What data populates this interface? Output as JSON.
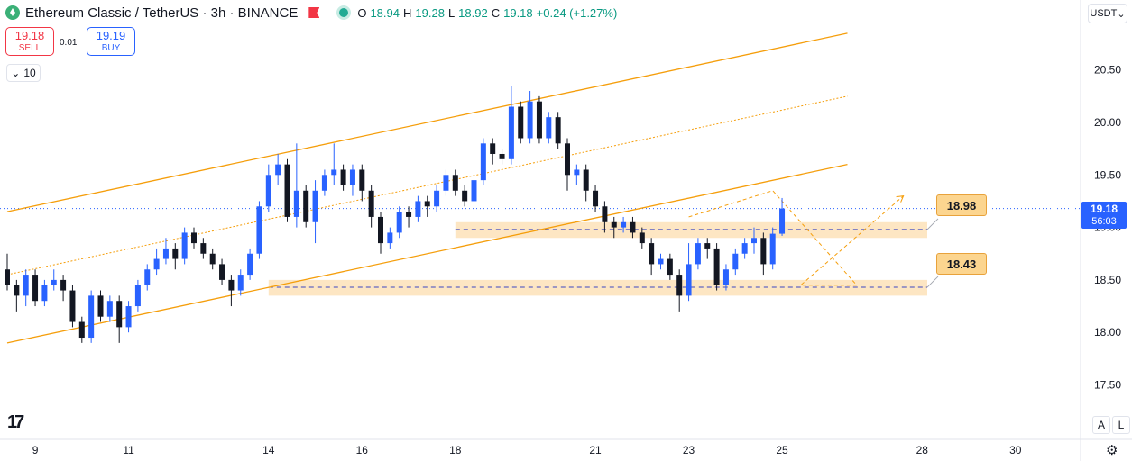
{
  "header": {
    "symbol": "Ethereum Classic / TetherUS · 3h · BINANCE",
    "ohlc": [
      {
        "key": "O",
        "value": "18.94"
      },
      {
        "key": "H",
        "value": "19.28"
      },
      {
        "key": "L",
        "value": "18.92"
      },
      {
        "key": "C",
        "value": "19.18"
      },
      {
        "key": "",
        "value": "+0.24 (+1.27%)"
      }
    ]
  },
  "trade": {
    "sell_price": "19.18",
    "sell_label": "SELL",
    "spread": "0.01",
    "buy_price": "19.19",
    "buy_label": "BUY",
    "quantity": "10"
  },
  "currency_button": "USDT",
  "last_price": {
    "price": "19.18",
    "countdown": "56:03"
  },
  "bottom": {
    "auto_label": "A",
    "log_label": "L"
  },
  "colors": {
    "up": "#2962ff",
    "down": "#131722",
    "channel": "#f59e0b",
    "zone": "#fde2b8",
    "price_line": "#2962ff",
    "accent_green": "#3bb077"
  },
  "chart_data": {
    "type": "candlestick",
    "title": "Ethereum Classic / TetherUS · 3h · BINANCE",
    "x_unit": "3h bars",
    "xlim": [
      0,
      120
    ],
    "ylim": [
      17.1,
      20.95
    ],
    "y_ticks": [
      "20.50",
      "20.00",
      "19.50",
      "19.00",
      "18.50",
      "18.00",
      "17.50"
    ],
    "x_ticks": [
      {
        "bar": 3,
        "label": "9"
      },
      {
        "bar": 13,
        "label": "11"
      },
      {
        "bar": 28,
        "label": "14"
      },
      {
        "bar": 38,
        "label": "16"
      },
      {
        "bar": 48,
        "label": "18"
      },
      {
        "bar": 63,
        "label": "21"
      },
      {
        "bar": 73,
        "label": "23"
      },
      {
        "bar": 83,
        "label": "25"
      },
      {
        "bar": 98,
        "label": "28"
      },
      {
        "bar": 108,
        "label": "30"
      }
    ],
    "candles": [
      [
        18.6,
        18.45,
        18.75,
        18.4
      ],
      [
        18.45,
        18.35,
        18.5,
        18.2
      ],
      [
        18.35,
        18.55,
        18.6,
        18.25
      ],
      [
        18.55,
        18.3,
        18.6,
        18.25
      ],
      [
        18.3,
        18.45,
        18.5,
        18.25
      ],
      [
        18.45,
        18.5,
        18.6,
        18.4
      ],
      [
        18.5,
        18.4,
        18.55,
        18.3
      ],
      [
        18.4,
        18.1,
        18.45,
        18.05
      ],
      [
        18.1,
        17.95,
        18.15,
        17.9
      ],
      [
        17.95,
        18.35,
        18.4,
        17.9
      ],
      [
        18.35,
        18.15,
        18.4,
        18.1
      ],
      [
        18.15,
        18.3,
        18.35,
        18.1
      ],
      [
        18.3,
        18.05,
        18.35,
        17.9
      ],
      [
        18.05,
        18.25,
        18.3,
        18.0
      ],
      [
        18.25,
        18.45,
        18.5,
        18.2
      ],
      [
        18.45,
        18.6,
        18.65,
        18.4
      ],
      [
        18.6,
        18.7,
        18.8,
        18.55
      ],
      [
        18.7,
        18.8,
        18.9,
        18.65
      ],
      [
        18.8,
        18.7,
        18.85,
        18.6
      ],
      [
        18.7,
        18.95,
        19.0,
        18.65
      ],
      [
        18.95,
        18.85,
        19.0,
        18.8
      ],
      [
        18.85,
        18.75,
        18.9,
        18.7
      ],
      [
        18.75,
        18.65,
        18.8,
        18.6
      ],
      [
        18.65,
        18.5,
        18.7,
        18.45
      ],
      [
        18.5,
        18.4,
        18.55,
        18.25
      ],
      [
        18.4,
        18.55,
        18.6,
        18.35
      ],
      [
        18.55,
        18.75,
        18.8,
        18.5
      ],
      [
        18.75,
        19.2,
        19.25,
        18.7
      ],
      [
        19.2,
        19.5,
        19.6,
        19.15
      ],
      [
        19.5,
        19.6,
        19.7,
        19.4
      ],
      [
        19.6,
        19.1,
        19.65,
        19.05
      ],
      [
        19.1,
        19.35,
        19.8,
        19.0
      ],
      [
        19.35,
        19.05,
        19.4,
        19.0
      ],
      [
        19.05,
        19.35,
        19.45,
        18.85
      ],
      [
        19.35,
        19.5,
        19.55,
        19.3
      ],
      [
        19.5,
        19.55,
        19.8,
        19.4
      ],
      [
        19.55,
        19.4,
        19.6,
        19.35
      ],
      [
        19.4,
        19.55,
        19.6,
        19.3
      ],
      [
        19.55,
        19.35,
        19.6,
        19.25
      ],
      [
        19.35,
        19.1,
        19.4,
        19.0
      ],
      [
        19.1,
        18.85,
        19.15,
        18.75
      ],
      [
        18.85,
        18.95,
        19.0,
        18.8
      ],
      [
        18.95,
        19.15,
        19.2,
        18.9
      ],
      [
        19.15,
        19.1,
        19.2,
        19.0
      ],
      [
        19.1,
        19.25,
        19.3,
        19.05
      ],
      [
        19.25,
        19.2,
        19.3,
        19.1
      ],
      [
        19.2,
        19.35,
        19.4,
        19.15
      ],
      [
        19.35,
        19.5,
        19.55,
        19.3
      ],
      [
        19.5,
        19.35,
        19.55,
        19.3
      ],
      [
        19.35,
        19.25,
        19.4,
        19.2
      ],
      [
        19.25,
        19.45,
        19.5,
        19.2
      ],
      [
        19.45,
        19.8,
        19.85,
        19.4
      ],
      [
        19.8,
        19.7,
        19.85,
        19.6
      ],
      [
        19.7,
        19.65,
        19.75,
        19.6
      ],
      [
        19.65,
        20.15,
        20.35,
        19.6
      ],
      [
        20.15,
        19.85,
        20.2,
        19.8
      ],
      [
        19.85,
        20.2,
        20.3,
        19.8
      ],
      [
        20.2,
        19.85,
        20.25,
        19.8
      ],
      [
        19.85,
        20.05,
        20.1,
        19.8
      ],
      [
        20.05,
        19.8,
        20.1,
        19.75
      ],
      [
        19.8,
        19.5,
        19.85,
        19.35
      ],
      [
        19.5,
        19.55,
        19.6,
        19.4
      ],
      [
        19.55,
        19.35,
        19.6,
        19.25
      ],
      [
        19.35,
        19.2,
        19.4,
        19.15
      ],
      [
        19.2,
        19.05,
        19.25,
        18.95
      ],
      [
        19.05,
        19.0,
        19.1,
        18.9
      ],
      [
        19.0,
        19.05,
        19.1,
        18.95
      ],
      [
        19.05,
        18.95,
        19.1,
        18.9
      ],
      [
        18.95,
        18.85,
        19.0,
        18.8
      ],
      [
        18.85,
        18.65,
        18.9,
        18.55
      ],
      [
        18.65,
        18.7,
        18.75,
        18.6
      ],
      [
        18.7,
        18.55,
        18.75,
        18.5
      ],
      [
        18.55,
        18.35,
        18.6,
        18.2
      ],
      [
        18.35,
        18.65,
        18.85,
        18.3
      ],
      [
        18.65,
        18.85,
        18.9,
        18.6
      ],
      [
        18.85,
        18.8,
        18.9,
        18.7
      ],
      [
        18.8,
        18.45,
        18.85,
        18.4
      ],
      [
        18.45,
        18.6,
        18.65,
        18.4
      ],
      [
        18.6,
        18.75,
        18.8,
        18.55
      ],
      [
        18.75,
        18.85,
        18.9,
        18.7
      ],
      [
        18.85,
        18.9,
        19.0,
        18.75
      ],
      [
        18.9,
        18.65,
        18.95,
        18.55
      ],
      [
        18.65,
        18.94,
        19.0,
        18.6
      ],
      [
        18.94,
        19.18,
        19.28,
        18.92
      ]
    ],
    "candle_format": [
      "open",
      "close",
      "high",
      "low"
    ],
    "channel": {
      "upper": [
        [
          0,
          19.15
        ],
        [
          90,
          20.85
        ]
      ],
      "middle": [
        [
          0,
          18.55
        ],
        [
          90,
          20.25
        ]
      ],
      "lower": [
        [
          0,
          17.9
        ],
        [
          90,
          19.6
        ]
      ]
    },
    "zones": [
      {
        "label": "18.98",
        "low": 18.9,
        "high": 19.05,
        "from_bar": 48
      },
      {
        "label": "18.43",
        "low": 18.35,
        "high": 18.5,
        "from_bar": 28
      }
    ],
    "projection": [
      [
        73,
        19.1
      ],
      [
        82,
        19.35
      ],
      [
        91,
        18.45
      ],
      [
        85,
        18.45
      ],
      [
        96,
        19.3
      ]
    ]
  }
}
